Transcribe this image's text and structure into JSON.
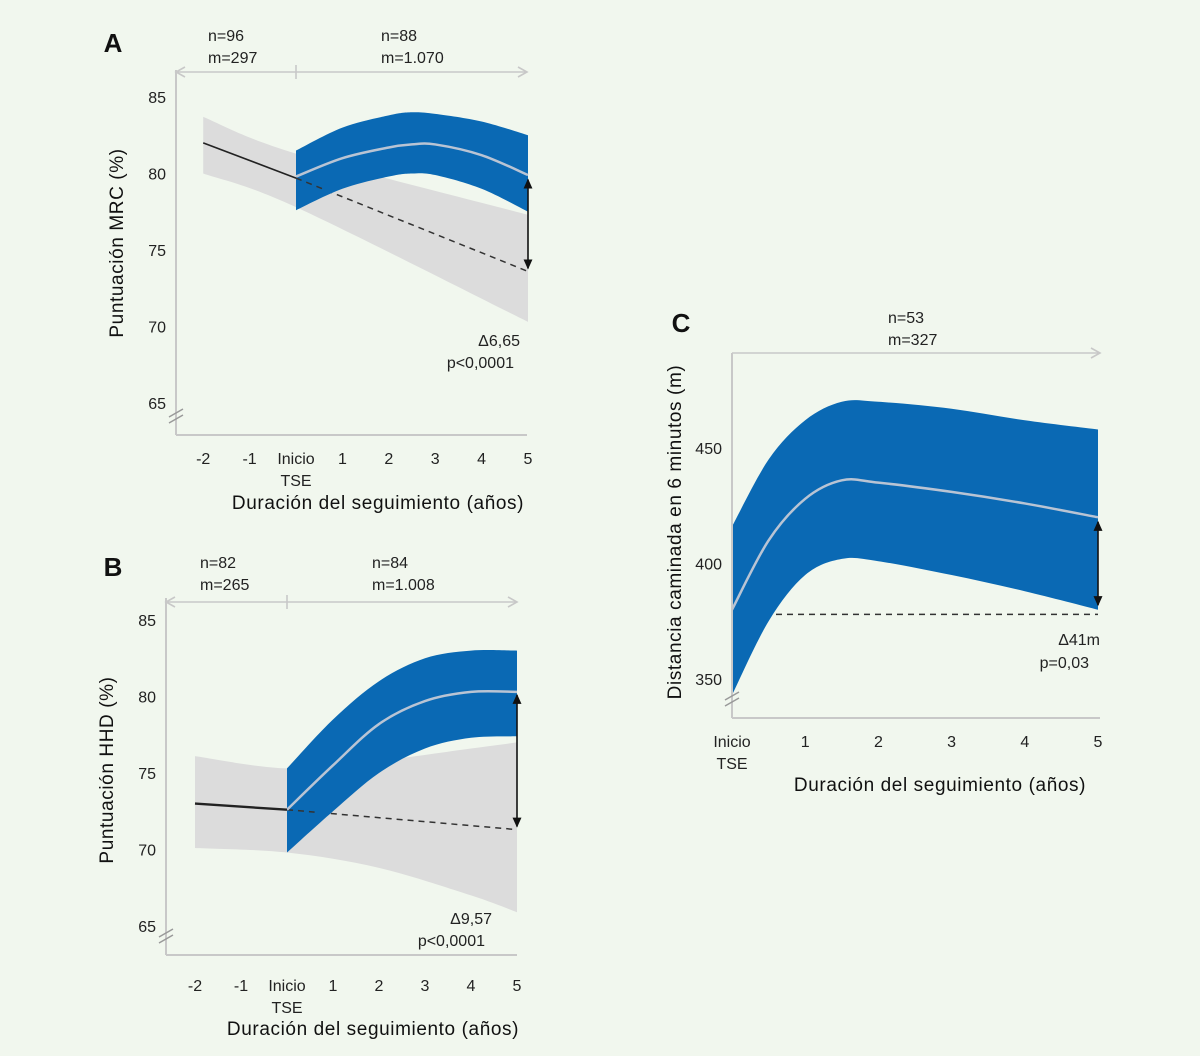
{
  "colors": {
    "background": "#f1f7ee",
    "blue_band": "#0a69b4",
    "gray_band": "#dcdcdc",
    "mean_line": "#b9c4d4",
    "axis": "#c8c8c8",
    "line": "#222222"
  },
  "chart_data": [
    {
      "panel": "A",
      "type": "line",
      "xlabel": "Duración del seguimiento (años)",
      "ylabel": "Puntuación MRC (%)",
      "x_ticks": [
        -2,
        -1,
        0,
        1,
        2,
        3,
        4,
        5
      ],
      "x_tick_labels": [
        "-2",
        "-1",
        "Inicio\nTSE",
        "1",
        "2",
        "3",
        "4",
        "5"
      ],
      "y_ticks": [
        65,
        70,
        75,
        80,
        85
      ],
      "y_tick_labels": [
        "65",
        "70",
        "75",
        "80",
        "85"
      ],
      "xlim": [
        -2,
        5
      ],
      "header": [
        {
          "n": "n=96",
          "m": "m=297"
        },
        {
          "n": "n=88",
          "m": "m=1.070"
        }
      ],
      "annotation": {
        "delta": "Δ6,65",
        "p": "p<0,0001"
      },
      "gray_band": {
        "x": [
          -2,
          0,
          5
        ],
        "upper": [
          83.7,
          81.3,
          77.3
        ],
        "lower": [
          80,
          77.8,
          70.3
        ]
      },
      "blue_band": {
        "x": [
          0,
          1,
          2,
          2.5,
          3,
          4,
          5
        ],
        "upper": [
          81.5,
          83,
          83.8,
          84,
          83.9,
          83.4,
          82.5
        ],
        "lower": [
          77.6,
          79,
          79.8,
          80,
          79.9,
          79,
          77.5
        ]
      },
      "mean_after": {
        "x": [
          0,
          1,
          2,
          2.5,
          3,
          4,
          5
        ],
        "y": [
          79.8,
          81,
          81.7,
          81.9,
          81.9,
          81.2,
          79.9
        ]
      },
      "mean_before": {
        "x": [
          -2,
          0
        ],
        "y": [
          82,
          79.7
        ]
      },
      "projected": {
        "x": [
          0,
          5
        ],
        "y": [
          79.7,
          73.6
        ]
      },
      "difference_arrow": {
        "x": 5,
        "from": 79.6,
        "to": 73.8
      }
    },
    {
      "panel": "B",
      "type": "line",
      "xlabel": "Duración del seguimiento (años)",
      "ylabel": "Puntuación HHD (%)",
      "x_ticks": [
        -2,
        -1,
        0,
        1,
        2,
        3,
        4,
        5
      ],
      "x_tick_labels": [
        "-2",
        "-1",
        "Inicio\nTSE",
        "1",
        "2",
        "3",
        "4",
        "5"
      ],
      "y_ticks": [
        65,
        70,
        75,
        80,
        85
      ],
      "y_tick_labels": [
        "65",
        "70",
        "75",
        "80",
        "85"
      ],
      "xlim": [
        -2,
        5
      ],
      "header": [
        {
          "n": "n=82",
          "m": "m=265"
        },
        {
          "n": "n=84",
          "m": "m=1.008"
        }
      ],
      "annotation": {
        "delta": "Δ9,57",
        "p": "p<0,0001"
      },
      "gray_band": {
        "x": [
          -2,
          0,
          2,
          4,
          5
        ],
        "upper": [
          76.1,
          75.3,
          75.8,
          76.6,
          77
        ],
        "lower": [
          70.1,
          69.8,
          68.8,
          67,
          65.9
        ]
      },
      "blue_band": {
        "x": [
          0,
          1,
          2,
          3,
          4,
          5
        ],
        "upper": [
          75.3,
          78.5,
          81,
          82.5,
          83,
          83
        ],
        "lower": [
          69.8,
          72.5,
          75,
          76.6,
          77.3,
          77.4
        ]
      },
      "mean_after": {
        "x": [
          0,
          1,
          2,
          3,
          4,
          5
        ],
        "y": [
          72.6,
          75.5,
          78.2,
          79.7,
          80.3,
          80.3
        ]
      },
      "mean_before": {
        "x": [
          -2,
          0
        ],
        "y": [
          73,
          72.6
        ]
      },
      "projected": {
        "x": [
          0,
          5
        ],
        "y": [
          72.6,
          71.3
        ]
      },
      "difference_arrow": {
        "x": 5,
        "from": 80.1,
        "to": 71.5
      }
    },
    {
      "panel": "C",
      "type": "line",
      "xlabel": "Duración del seguimiento (años)",
      "ylabel": "Distancia caminada en 6 minutos (m)",
      "x_ticks": [
        0,
        1,
        2,
        3,
        4,
        5
      ],
      "x_tick_labels": [
        "Inicio\nTSE",
        "1",
        "2",
        "3",
        "4",
        "5"
      ],
      "y_ticks": [
        350,
        400,
        450
      ],
      "y_tick_labels": [
        "350",
        "400",
        "450"
      ],
      "xlim": [
        0,
        5
      ],
      "header": [
        {
          "n": "n=53",
          "m": "m=327"
        }
      ],
      "annotation": {
        "delta": "Δ41m",
        "p": "p=0,03"
      },
      "blue_band": {
        "x": [
          0,
          0.5,
          1,
          1.5,
          2,
          3,
          4,
          5
        ],
        "upper": [
          416,
          445,
          462,
          470,
          470,
          467,
          462,
          458
        ],
        "lower": [
          343,
          375,
          395,
          402,
          401,
          395,
          388,
          380
        ]
      },
      "mean_after": {
        "x": [
          0,
          0.5,
          1,
          1.5,
          2,
          3,
          4,
          5
        ],
        "y": [
          380,
          410,
          428,
          436,
          435,
          431,
          426,
          420
        ]
      },
      "projected": {
        "x": [
          0,
          5
        ],
        "y": [
          378,
          378
        ]
      },
      "difference_arrow": {
        "x": 5,
        "from": 418,
        "to": 382
      }
    }
  ]
}
